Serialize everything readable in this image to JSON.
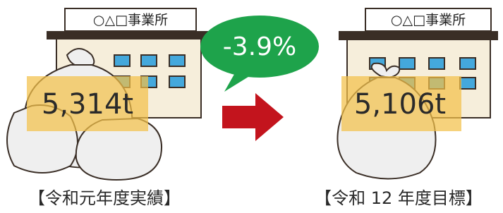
{
  "left": {
    "sign": "○△□事業所",
    "amount": "5,314t",
    "caption": "【令和元年度実績】"
  },
  "change": "-3.9%",
  "right": {
    "sign": "○△□事業所",
    "amount": "5,106t",
    "caption": "【令和 12 年度目標】"
  }
}
